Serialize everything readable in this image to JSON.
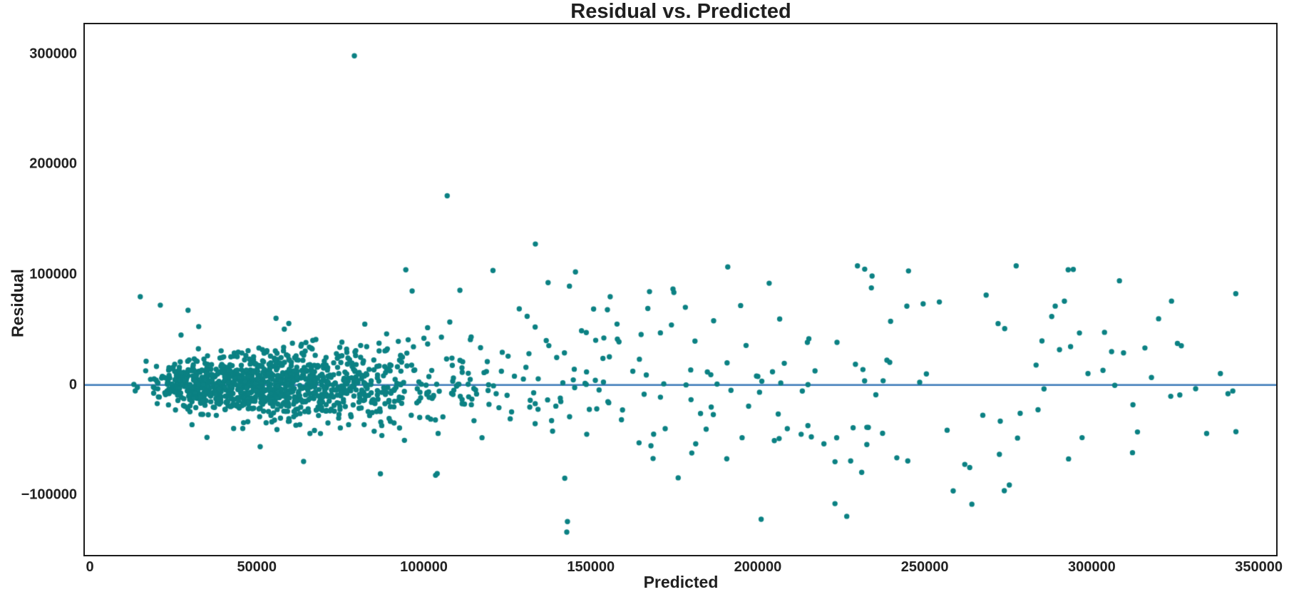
{
  "figure": {
    "title": "Residual vs. Predicted",
    "xlabel": "Predicted",
    "ylabel": "Residual",
    "background_color": "#ffffff",
    "spine_color": "#1b1b1b",
    "text_color": "#1f1f1f"
  },
  "chart_data": {
    "type": "scatter",
    "title": "Residual vs. Predicted",
    "xlabel": "Predicted",
    "ylabel": "Residual",
    "grid": false,
    "legend": null,
    "xlim": [
      -1500,
      355200
    ],
    "ylim": [
      -154200,
      327100
    ],
    "xticks": [
      0,
      50000,
      100000,
      150000,
      200000,
      250000,
      300000,
      350000
    ],
    "xtick_labels": [
      "0",
      "50000",
      "100000",
      "150000",
      "200000",
      "250000",
      "300000",
      "350000"
    ],
    "yticks": [
      -100000,
      0,
      100000,
      200000,
      300000
    ],
    "ytick_labels": [
      "−100000",
      "0",
      "100000",
      "200000",
      "300000"
    ],
    "marker": {
      "color": "#0b8183",
      "radius": 3.7
    },
    "zero_line": {
      "y": 0,
      "color": "#3b79b8",
      "width": 2.5
    },
    "n_points_estimate": 1440,
    "outliers": [
      [
        79200,
        298500
      ],
      [
        107000,
        171500
      ],
      [
        133400,
        127800
      ],
      [
        94600,
        104400
      ],
      [
        120700,
        103800
      ],
      [
        145400,
        102500
      ],
      [
        191000,
        107000
      ],
      [
        232000,
        105000
      ],
      [
        249500,
        73500
      ],
      [
        234000,
        88000
      ],
      [
        203400,
        92200
      ],
      [
        174600,
        87000
      ],
      [
        137200,
        92800
      ],
      [
        143600,
        89600
      ],
      [
        96500,
        85200
      ],
      [
        110800,
        85800
      ],
      [
        155800,
        80000
      ],
      [
        15100,
        80000
      ],
      [
        21100,
        72300
      ],
      [
        29400,
        67700
      ],
      [
        32600,
        52900
      ],
      [
        27300,
        45200
      ],
      [
        288000,
        62000
      ],
      [
        296300,
        47100
      ],
      [
        303800,
        47700
      ],
      [
        320000,
        60000
      ],
      [
        309500,
        29000
      ],
      [
        315900,
        33500
      ],
      [
        326800,
        35500
      ],
      [
        338500,
        10300
      ],
      [
        283900,
        -22600
      ],
      [
        142800,
        -133500
      ],
      [
        143000,
        -124000
      ],
      [
        201000,
        -121900
      ],
      [
        223100,
        -107700
      ],
      [
        258500,
        -96100
      ],
      [
        273800,
        -96000
      ],
      [
        227800,
        -69000
      ],
      [
        244900,
        -69000
      ],
      [
        231100,
        -79300
      ],
      [
        190700,
        -67000
      ],
      [
        104000,
        -80500
      ],
      [
        87000,
        -80600
      ],
      [
        64000,
        -69500
      ],
      [
        51000,
        -56000
      ]
    ],
    "cloud_model": {
      "seed": 42,
      "groups": [
        {
          "kind": "lognormal",
          "n": 1250,
          "mu": 10.9,
          "sigma": 0.45,
          "clip_x": [
            12000,
            215000
          ],
          "resid_base": 6000,
          "resid_slope": 0.17,
          "outlier_prob": 0.018,
          "outlier_scale": 2.0,
          "clip_y": [
            -97000,
            135000
          ]
        },
        {
          "kind": "powtail",
          "n": 145,
          "x_min": 148000,
          "x_max": 344000,
          "pow": 1.7,
          "resid_base": 8000,
          "resid_slope": 0.17,
          "resid_cap": 52000,
          "clip_y": [
            -122000,
            108000
          ]
        }
      ]
    }
  }
}
